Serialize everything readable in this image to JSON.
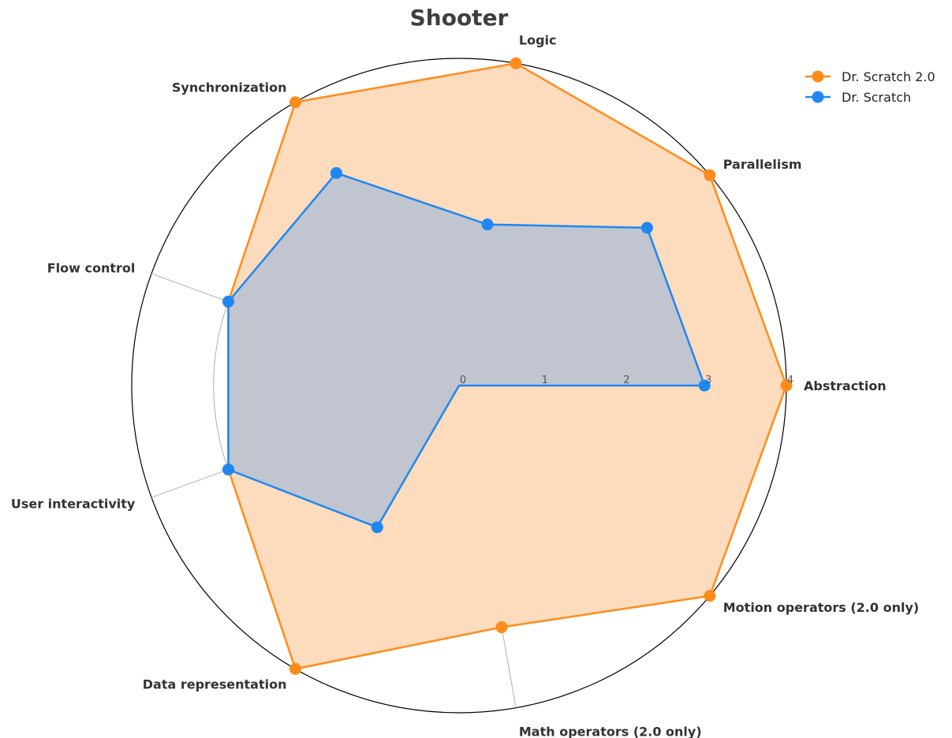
{
  "chart_data": {
    "type": "radar",
    "title": "Shooter",
    "axes": [
      "Abstraction",
      "Parallelism",
      "Logic",
      "Synchronization",
      "Flow control",
      "User interactivity",
      "Data representation",
      "Math operators (2.0 only)",
      "Motion operators (2.0 only)"
    ],
    "rlim": [
      0,
      4
    ],
    "rticks": [
      "0",
      "1",
      "2",
      "3",
      "4"
    ],
    "grid": true,
    "legend_position": "top-right",
    "series": [
      {
        "name": "Dr. Scratch 2.0",
        "color": "#ff8c1a",
        "fill": "#fddbbd",
        "values": [
          4,
          4,
          4,
          4,
          3,
          3,
          4,
          3,
          4
        ]
      },
      {
        "name": "Dr. Scratch",
        "color": "#1e88f0",
        "fill": "#c0c5cf",
        "values": [
          3,
          3,
          2,
          3,
          3,
          3,
          2,
          0,
          0
        ]
      }
    ]
  }
}
